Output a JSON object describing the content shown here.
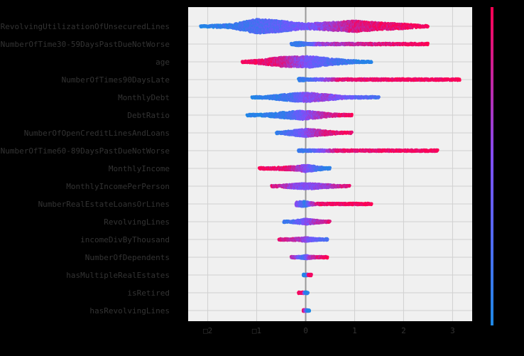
{
  "chart_data": {
    "type": "scatter",
    "subtype": "shap-beeswarm",
    "title": "",
    "xlabel": "",
    "ylabel": "",
    "xlim": [
      -2.4,
      3.4
    ],
    "x_ticks": [
      -2,
      -1,
      0,
      1,
      2,
      3
    ],
    "x_tick_labels": [
      "□2",
      "□1",
      "0",
      "1",
      "2",
      "3"
    ],
    "grid": true,
    "zero_line": true,
    "colorbar": {
      "low_color": "#1e88e5",
      "high_color": "#ff0052"
    },
    "colors": {
      "background": "#000000",
      "plot_area": "#f0f0f0",
      "grid": "#d0d0d0",
      "zero_line": "#999999",
      "text": "#333333"
    },
    "features": [
      {
        "name": "RevolvingUtilizationOfUnsecuredLines",
        "min": -2.15,
        "max": 2.5,
        "spread": 0.85,
        "density": [
          [
            -2.15,
            0.06
          ],
          [
            -1.5,
            0.25
          ],
          [
            -1.0,
            0.9
          ],
          [
            -0.55,
            0.7
          ],
          [
            -0.2,
            0.45
          ],
          [
            0.0,
            0.3
          ],
          [
            0.3,
            0.45
          ],
          [
            0.7,
            0.55
          ],
          [
            1.0,
            0.7
          ],
          [
            1.5,
            0.45
          ],
          [
            2.0,
            0.3
          ],
          [
            2.5,
            0.06
          ]
        ],
        "color_stops": [
          [
            -2.15,
            0.0
          ],
          [
            0.0,
            0.45
          ],
          [
            0.4,
            0.6
          ],
          [
            1.0,
            0.85
          ],
          [
            2.5,
            1.0
          ]
        ]
      },
      {
        "name": "NumberOfTime30-59DaysPastDueNotWorse",
        "min": -0.3,
        "max": 2.5,
        "spread": 0.35,
        "density": [
          [
            -0.3,
            0.15
          ],
          [
            -0.2,
            0.5
          ],
          [
            -0.1,
            0.5
          ],
          [
            0.05,
            0.2
          ],
          [
            0.15,
            0.08
          ],
          [
            0.25,
            0.12
          ],
          [
            0.6,
            0.12
          ],
          [
            1.2,
            0.12
          ],
          [
            2.0,
            0.1
          ],
          [
            2.4,
            0.06
          ],
          [
            2.5,
            0.03
          ]
        ],
        "color_stops": [
          [
            -0.3,
            0.1
          ],
          [
            0.1,
            0.2
          ],
          [
            0.25,
            0.6
          ],
          [
            1.0,
            0.8
          ],
          [
            2.5,
            1.0
          ]
        ]
      },
      {
        "name": "age",
        "min": -1.3,
        "max": 1.35,
        "spread": 0.65,
        "density": [
          [
            -1.3,
            0.05
          ],
          [
            -0.9,
            0.35
          ],
          [
            -0.5,
            0.75
          ],
          [
            -0.1,
            0.85
          ],
          [
            0.1,
            0.9
          ],
          [
            0.4,
            0.6
          ],
          [
            0.8,
            0.3
          ],
          [
            1.2,
            0.1
          ],
          [
            1.35,
            0.04
          ]
        ],
        "color_stops": [
          [
            -1.3,
            1.0
          ],
          [
            -0.5,
            0.85
          ],
          [
            0.0,
            0.5
          ],
          [
            0.5,
            0.25
          ],
          [
            1.35,
            0.0
          ]
        ]
      },
      {
        "name": "NumberOfTimes90DaysLate",
        "min": -0.15,
        "max": 3.15,
        "spread": 0.35,
        "density": [
          [
            -0.15,
            0.4
          ],
          [
            -0.05,
            0.4
          ],
          [
            0.05,
            0.05
          ],
          [
            0.7,
            0.1
          ],
          [
            0.9,
            0.2
          ],
          [
            1.5,
            0.25
          ],
          [
            2.2,
            0.25
          ],
          [
            2.8,
            0.15
          ],
          [
            3.15,
            0.04
          ]
        ],
        "color_stops": [
          [
            -0.15,
            0.1
          ],
          [
            0.1,
            0.2
          ],
          [
            0.7,
            0.9
          ],
          [
            3.15,
            1.0
          ]
        ]
      },
      {
        "name": "MonthlyDebt",
        "min": -1.1,
        "max": 1.5,
        "spread": 0.55,
        "density": [
          [
            -1.1,
            0.05
          ],
          [
            -0.8,
            0.2
          ],
          [
            -0.4,
            0.6
          ],
          [
            -0.1,
            0.85
          ],
          [
            0.1,
            0.8
          ],
          [
            0.4,
            0.55
          ],
          [
            0.8,
            0.2
          ],
          [
            1.2,
            0.08
          ],
          [
            1.5,
            0.04
          ]
        ],
        "color_stops": [
          [
            -1.1,
            0.0
          ],
          [
            -0.3,
            0.2
          ],
          [
            0.0,
            0.5
          ],
          [
            0.4,
            0.6
          ],
          [
            1.5,
            0.2
          ]
        ]
      },
      {
        "name": "DebtRatio",
        "min": -1.2,
        "max": 0.95,
        "spread": 0.55,
        "density": [
          [
            -1.2,
            0.05
          ],
          [
            -0.8,
            0.25
          ],
          [
            -0.4,
            0.6
          ],
          [
            -0.05,
            0.85
          ],
          [
            0.2,
            0.6
          ],
          [
            0.5,
            0.3
          ],
          [
            0.8,
            0.12
          ],
          [
            0.95,
            0.04
          ]
        ],
        "color_stops": [
          [
            -1.2,
            0.0
          ],
          [
            -0.4,
            0.15
          ],
          [
            0.0,
            0.5
          ],
          [
            0.4,
            0.75
          ],
          [
            0.95,
            1.0
          ]
        ]
      },
      {
        "name": "NumberOfOpenCreditLinesAndLoans",
        "min": -0.6,
        "max": 0.95,
        "spread": 0.5,
        "density": [
          [
            -0.6,
            0.05
          ],
          [
            -0.3,
            0.45
          ],
          [
            0.0,
            0.8
          ],
          [
            0.3,
            0.55
          ],
          [
            0.6,
            0.25
          ],
          [
            0.95,
            0.04
          ]
        ],
        "color_stops": [
          [
            -0.6,
            0.1
          ],
          [
            -0.2,
            0.35
          ],
          [
            0.1,
            0.6
          ],
          [
            0.4,
            0.85
          ],
          [
            0.95,
            1.0
          ]
        ]
      },
      {
        "name": "NumberOfTime60-89DaysPastDueNotWorse",
        "min": -0.15,
        "max": 2.7,
        "spread": 0.3,
        "density": [
          [
            -0.15,
            0.35
          ],
          [
            -0.05,
            0.35
          ],
          [
            0.05,
            0.08
          ],
          [
            0.1,
            0.1
          ],
          [
            0.65,
            0.1
          ],
          [
            0.9,
            0.2
          ],
          [
            1.6,
            0.22
          ],
          [
            2.3,
            0.15
          ],
          [
            2.7,
            0.04
          ]
        ],
        "color_stops": [
          [
            -0.15,
            0.1
          ],
          [
            0.1,
            0.2
          ],
          [
            0.65,
            0.9
          ],
          [
            2.7,
            1.0
          ]
        ]
      },
      {
        "name": "MonthlyIncome",
        "min": -0.95,
        "max": 0.5,
        "spread": 0.45,
        "density": [
          [
            -0.95,
            0.05
          ],
          [
            -0.6,
            0.25
          ],
          [
            -0.2,
            0.45
          ],
          [
            0.0,
            0.8
          ],
          [
            0.2,
            0.5
          ],
          [
            0.5,
            0.08
          ]
        ],
        "color_stops": [
          [
            -0.95,
            1.0
          ],
          [
            -0.4,
            0.9
          ],
          [
            0.0,
            0.55
          ],
          [
            0.25,
            0.2
          ],
          [
            0.5,
            0.0
          ]
        ]
      },
      {
        "name": "MonthlyIncomePerPerson",
        "min": -0.7,
        "max": 0.9,
        "spread": 0.45,
        "density": [
          [
            -0.7,
            0.05
          ],
          [
            -0.4,
            0.35
          ],
          [
            -0.1,
            0.6
          ],
          [
            0.1,
            0.65
          ],
          [
            0.4,
            0.4
          ],
          [
            0.7,
            0.2
          ],
          [
            0.9,
            0.05
          ]
        ],
        "color_stops": [
          [
            -0.7,
            0.9
          ],
          [
            -0.3,
            0.6
          ],
          [
            0.0,
            0.5
          ],
          [
            0.4,
            0.6
          ],
          [
            0.9,
            0.9
          ]
        ]
      },
      {
        "name": "NumberRealEstateLoansOrLines",
        "min": -0.2,
        "max": 1.35,
        "spread": 0.4,
        "density": [
          [
            -0.2,
            0.5
          ],
          [
            -0.05,
            0.7
          ],
          [
            0.05,
            0.5
          ],
          [
            0.2,
            0.2
          ],
          [
            0.5,
            0.2
          ],
          [
            0.9,
            0.12
          ],
          [
            1.35,
            0.04
          ]
        ],
        "color_stops": [
          [
            -0.2,
            0.6
          ],
          [
            0.0,
            0.1
          ],
          [
            0.1,
            0.6
          ],
          [
            0.3,
            0.95
          ],
          [
            1.35,
            1.0
          ]
        ]
      },
      {
        "name": "RevolvingLines",
        "min": -0.45,
        "max": 0.5,
        "spread": 0.4,
        "density": [
          [
            -0.45,
            0.05
          ],
          [
            -0.2,
            0.4
          ],
          [
            0.0,
            0.7
          ],
          [
            0.2,
            0.45
          ],
          [
            0.5,
            0.05
          ]
        ],
        "color_stops": [
          [
            -0.45,
            0.1
          ],
          [
            -0.1,
            0.4
          ],
          [
            0.1,
            0.6
          ],
          [
            0.5,
            0.9
          ]
        ]
      },
      {
        "name": "incomeDivByThousand",
        "min": -0.55,
        "max": 0.45,
        "spread": 0.35,
        "density": [
          [
            -0.55,
            0.05
          ],
          [
            -0.2,
            0.35
          ],
          [
            0.0,
            0.6
          ],
          [
            0.2,
            0.35
          ],
          [
            0.45,
            0.05
          ]
        ],
        "color_stops": [
          [
            -0.55,
            0.9
          ],
          [
            -0.1,
            0.65
          ],
          [
            0.1,
            0.45
          ],
          [
            0.45,
            0.2
          ]
        ]
      },
      {
        "name": "NumberOfDependents",
        "min": -0.3,
        "max": 0.45,
        "spread": 0.3,
        "density": [
          [
            -0.3,
            0.1
          ],
          [
            -0.1,
            0.4
          ],
          [
            0.0,
            0.6
          ],
          [
            0.15,
            0.35
          ],
          [
            0.45,
            0.08
          ]
        ],
        "color_stops": [
          [
            -0.3,
            0.8
          ],
          [
            -0.05,
            0.2
          ],
          [
            0.1,
            0.7
          ],
          [
            0.45,
            1.0
          ]
        ]
      },
      {
        "name": "hasMultipleRealEstates",
        "min": -0.05,
        "max": 0.12,
        "spread": 0.2,
        "density": [
          [
            -0.05,
            0.45
          ],
          [
            0.02,
            0.45
          ],
          [
            0.06,
            0.15
          ],
          [
            0.12,
            0.1
          ]
        ],
        "color_stops": [
          [
            -0.05,
            0.0
          ],
          [
            0.03,
            0.1
          ],
          [
            0.06,
            1.0
          ],
          [
            0.12,
            1.0
          ]
        ]
      },
      {
        "name": "isRetired",
        "min": -0.15,
        "max": 0.05,
        "spread": 0.2,
        "density": [
          [
            -0.15,
            0.1
          ],
          [
            -0.07,
            0.15
          ],
          [
            0.0,
            0.45
          ],
          [
            0.05,
            0.2
          ]
        ],
        "color_stops": [
          [
            -0.15,
            1.0
          ],
          [
            -0.05,
            0.9
          ],
          [
            0.0,
            0.0
          ],
          [
            0.05,
            0.0
          ]
        ]
      },
      {
        "name": "hasRevolvingLines",
        "min": -0.05,
        "max": 0.08,
        "spread": 0.2,
        "density": [
          [
            -0.05,
            0.3
          ],
          [
            0.0,
            0.5
          ],
          [
            0.04,
            0.25
          ],
          [
            0.08,
            0.1
          ]
        ],
        "color_stops": [
          [
            -0.05,
            1.0
          ],
          [
            0.0,
            0.6
          ],
          [
            0.03,
            0.1
          ],
          [
            0.08,
            0.0
          ]
        ]
      }
    ]
  }
}
